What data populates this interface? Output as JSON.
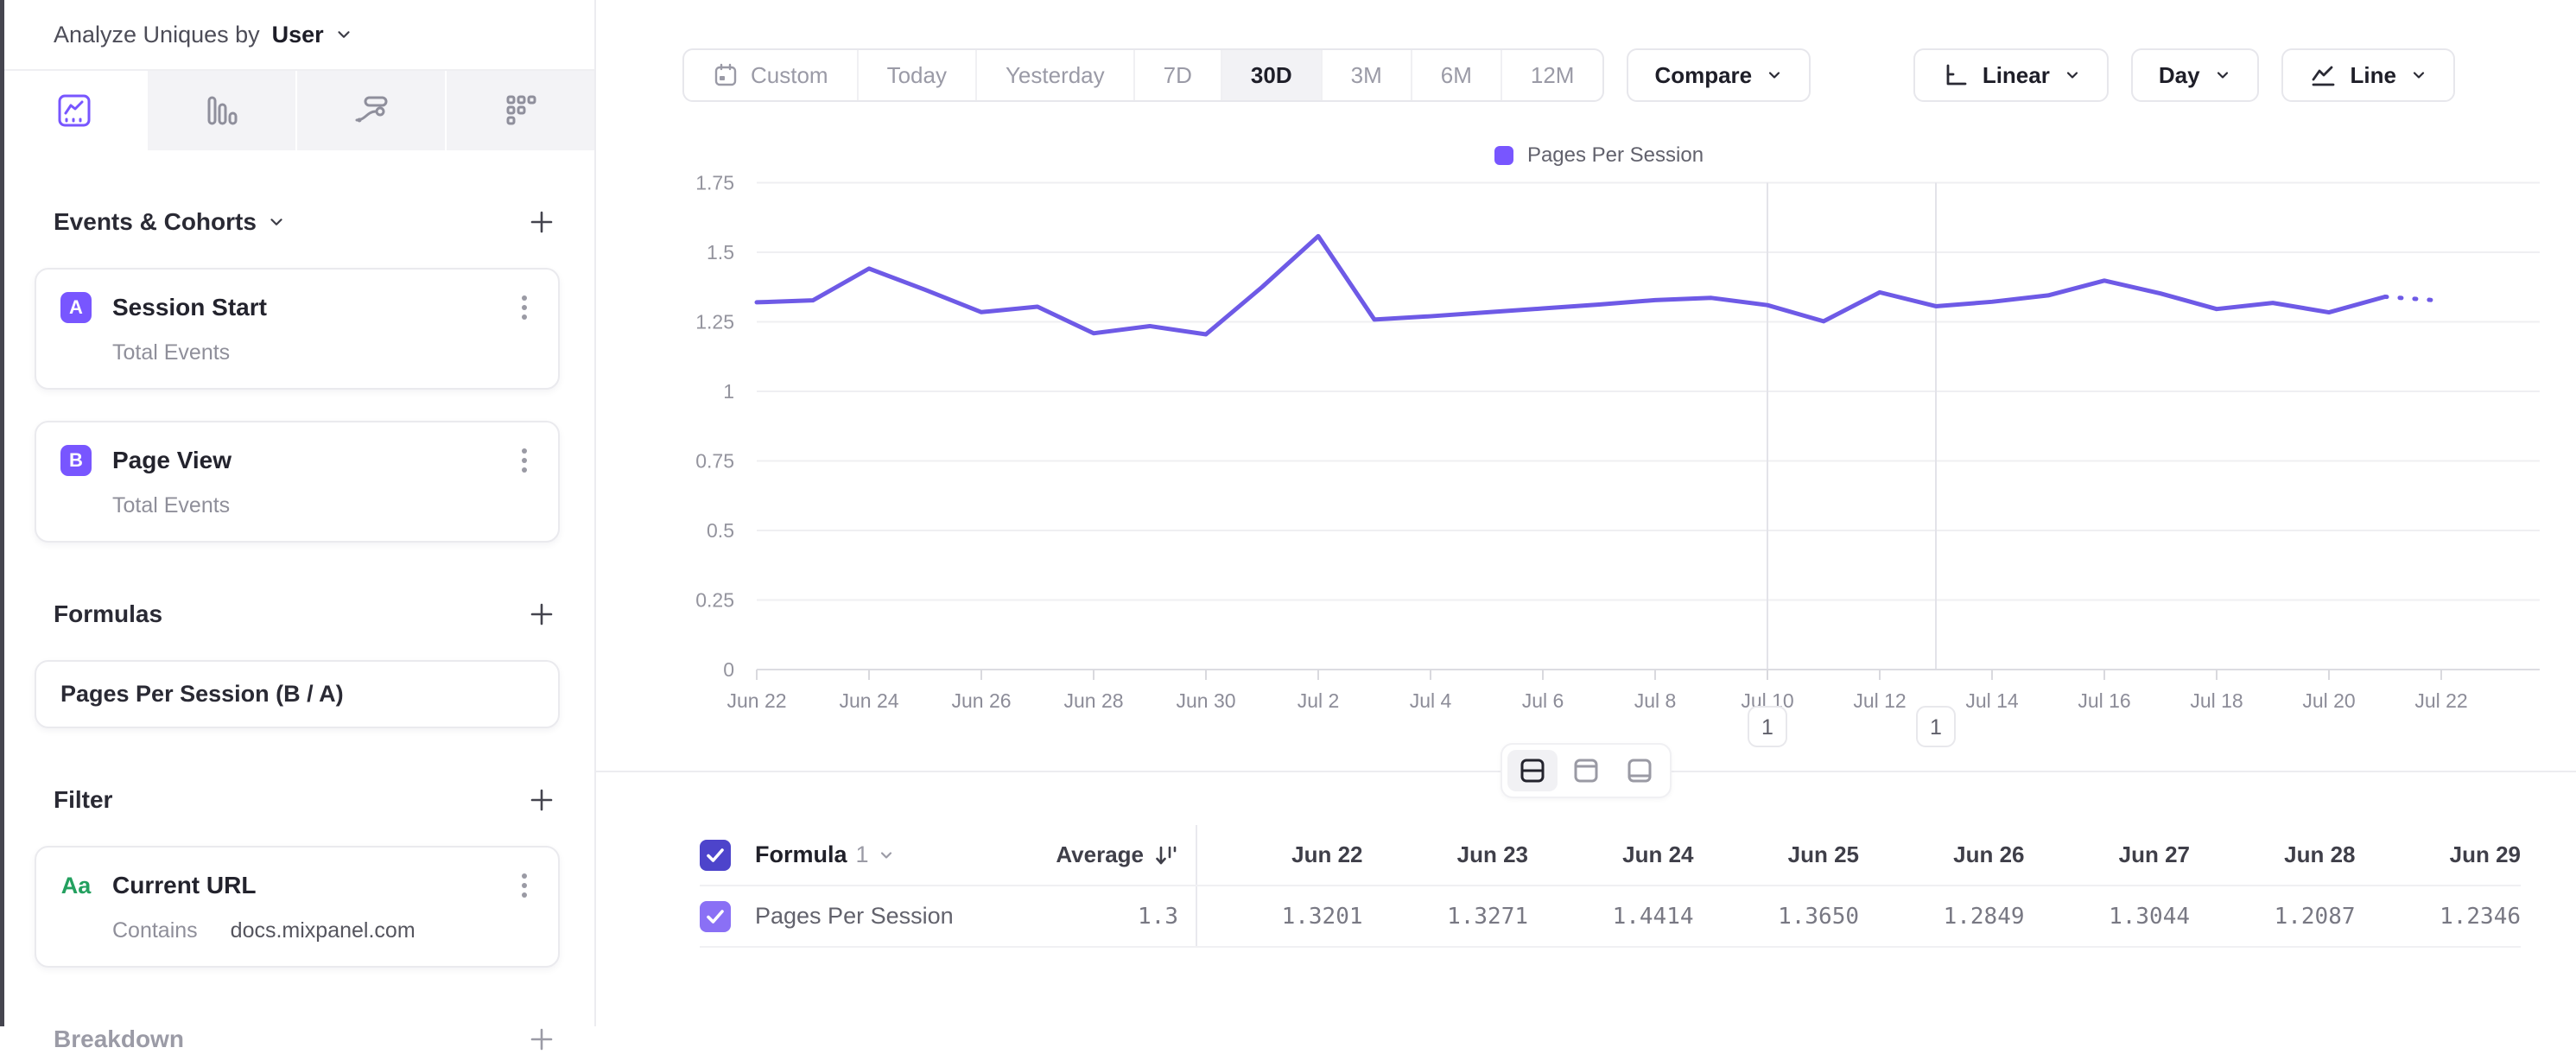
{
  "sidebar": {
    "analyze_label": "Analyze Uniques by",
    "analyze_value": "User",
    "events_section": {
      "title": "Events & Cohorts",
      "items": [
        {
          "badge": "A",
          "name": "Session Start",
          "sub": "Total Events"
        },
        {
          "badge": "B",
          "name": "Page View",
          "sub": "Total Events"
        }
      ]
    },
    "formulas_section": {
      "title": "Formulas",
      "items": [
        {
          "name": "Pages Per Session (B / A)"
        }
      ]
    },
    "filter_section": {
      "title": "Filter",
      "items": [
        {
          "icon": "Aa",
          "name": "Current URL",
          "operator": "Contains",
          "value": "docs.mixpanel.com"
        }
      ]
    },
    "breakdown_section": {
      "title": "Breakdown"
    }
  },
  "toolbar": {
    "ranges": [
      "Custom",
      "Today",
      "Yesterday",
      "7D",
      "30D",
      "3M",
      "6M",
      "12M"
    ],
    "active_range": "30D",
    "compare_label": "Compare",
    "scale_label": "Linear",
    "interval_label": "Day",
    "chart_type_label": "Line"
  },
  "chart_data": {
    "type": "line",
    "title": "",
    "legend_position": "top-center",
    "grid": "horizontal",
    "ylim": [
      0,
      1.75
    ],
    "y_tick_labels": [
      "0",
      "0.25",
      "0.5",
      "0.75",
      "1",
      "1.25",
      "1.5",
      "1.75"
    ],
    "accent_color": "#7856FF",
    "series": [
      {
        "name": "Pages Per Session",
        "color": "#6E5AE6",
        "dashed_tail_points": 2,
        "x": [
          "Jun 22",
          "Jun 23",
          "Jun 24",
          "Jun 25",
          "Jun 26",
          "Jun 27",
          "Jun 28",
          "Jun 29",
          "Jun 30",
          "Jul 1",
          "Jul 2",
          "Jul 3",
          "Jul 4",
          "Jul 5",
          "Jul 6",
          "Jul 7",
          "Jul 8",
          "Jul 9",
          "Jul 10",
          "Jul 11",
          "Jul 12",
          "Jul 13",
          "Jul 14",
          "Jul 15",
          "Jul 16",
          "Jul 17",
          "Jul 18",
          "Jul 19",
          "Jul 20",
          "Jul 21",
          "Jul 22"
        ],
        "values": [
          1.3201,
          1.3271,
          1.4414,
          1.365,
          1.2849,
          1.3044,
          1.2087,
          1.2346,
          1.205,
          1.375,
          1.558,
          1.258,
          1.27,
          1.284,
          1.298,
          1.312,
          1.328,
          1.336,
          1.31,
          1.252,
          1.356,
          1.306,
          1.322,
          1.345,
          1.398,
          1.352,
          1.296,
          1.318,
          1.284,
          1.34,
          1.326
        ]
      }
    ],
    "x_tick_labels": [
      "Jun 22",
      "Jun 24",
      "Jun 26",
      "Jun 28",
      "Jun 30",
      "Jul 2",
      "Jul 4",
      "Jul 6",
      "Jul 8",
      "Jul 10",
      "Jul 12",
      "Jul 14",
      "Jul 16",
      "Jul 18",
      "Jul 20",
      "Jul 22"
    ],
    "annotations": [
      {
        "x": "Jul 10",
        "label": "1"
      },
      {
        "x": "Jul 13",
        "label": "1"
      }
    ]
  },
  "table": {
    "group_label": "Formula",
    "group_number": "1",
    "average_header": "Average",
    "columns": [
      "Jun 22",
      "Jun 23",
      "Jun 24",
      "Jun 25",
      "Jun 26",
      "Jun 27",
      "Jun 28",
      "Jun 29"
    ],
    "rows": [
      {
        "name": "Pages Per Session",
        "average": "1.3",
        "values": [
          "1.3201",
          "1.3271",
          "1.4414",
          "1.3650",
          "1.2849",
          "1.3044",
          "1.2087",
          "1.2346"
        ]
      }
    ]
  }
}
